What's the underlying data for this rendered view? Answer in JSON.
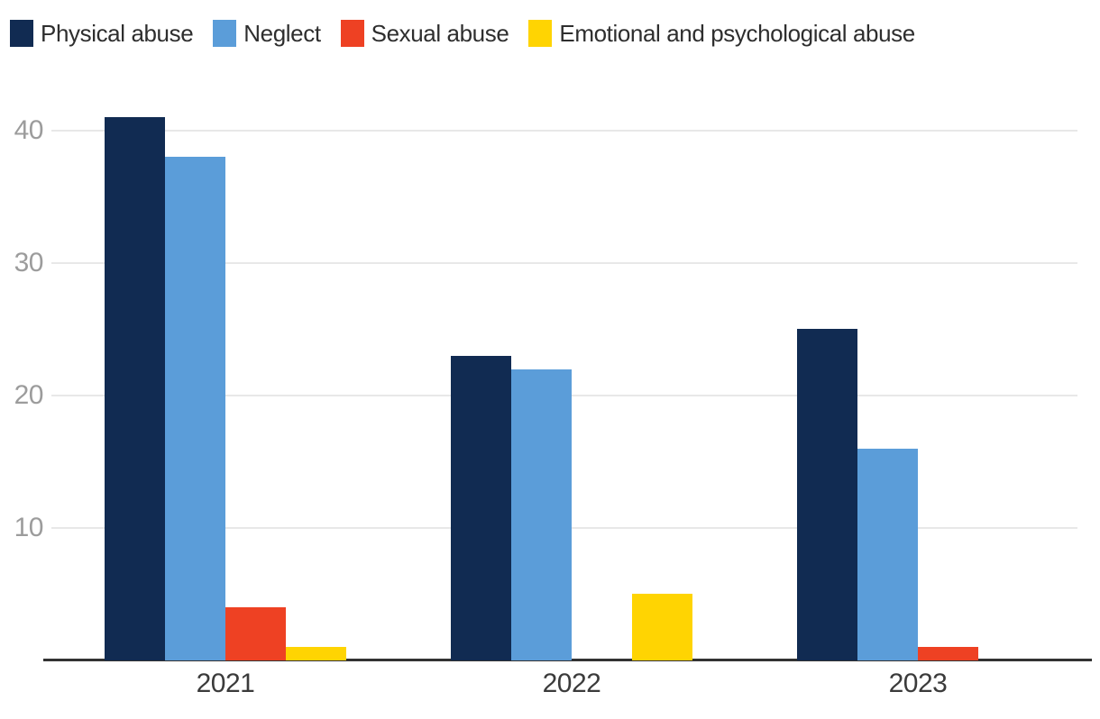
{
  "chart_data": {
    "type": "bar",
    "title": "",
    "categories": [
      "2021",
      "2022",
      "2023"
    ],
    "series": [
      {
        "name": "Physical abuse",
        "color": "#112b52",
        "values": [
          41,
          23,
          25
        ]
      },
      {
        "name": "Neglect",
        "color": "#5b9dd9",
        "values": [
          38,
          22,
          16
        ]
      },
      {
        "name": "Sexual abuse",
        "color": "#ee4123",
        "values": [
          4,
          0,
          1
        ]
      },
      {
        "name": "Emotional and psychological abuse",
        "color": "#ffd402",
        "values": [
          1,
          5,
          0
        ]
      }
    ],
    "y_ticks": [
      "10",
      "20",
      "30",
      "40"
    ],
    "ylim": [
      0,
      43.5
    ],
    "xlabel": "",
    "ylabel": "",
    "grid": true,
    "legend_position": "top-left",
    "colors": {
      "gridline": "#e8e8e8",
      "axis_line": "#333333",
      "ytick_text": "#9c9c9c",
      "xtick_text": "#3b3b3b",
      "legend_text": "#2e2e2e",
      "background": "#ffffff"
    }
  }
}
